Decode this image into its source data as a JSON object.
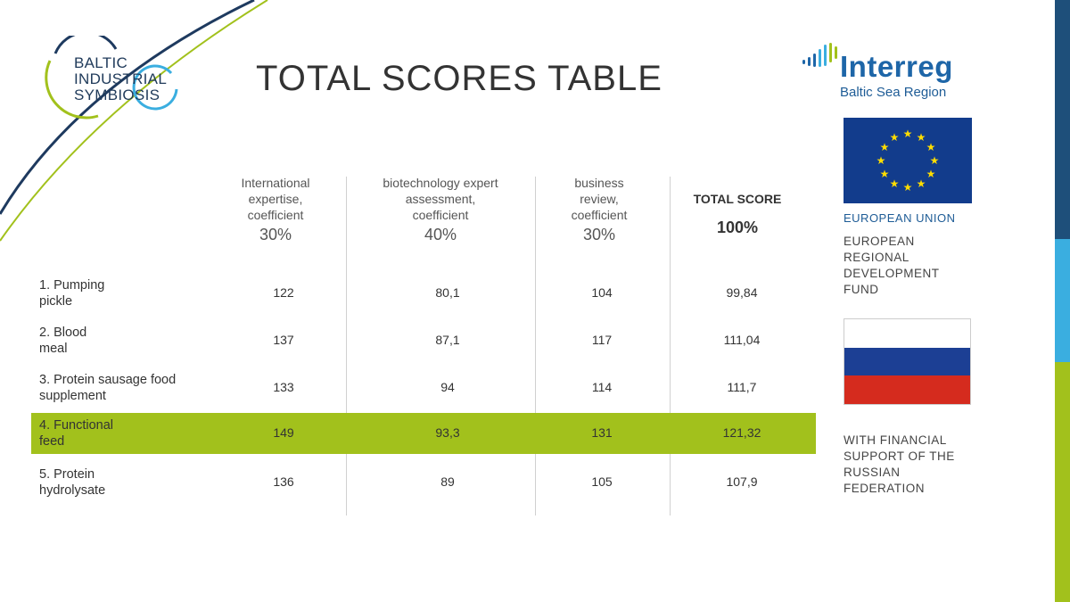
{
  "header": {
    "brand_lines": [
      "BALTIC",
      "INDUSTRIAL",
      "SYMBIOSIS"
    ],
    "title": "TOTAL SCORES TABLE"
  },
  "logos": {
    "interreg_name": "Interreg",
    "interreg_sub": "Baltic Sea Region",
    "eu_label": "EUROPEAN UNION",
    "fund_lines": [
      "EUROPEAN",
      "REGIONAL",
      "DEVELOPMENT",
      "FUND"
    ],
    "support_lines": [
      "WITH FINANCIAL",
      "SUPPORT OF THE",
      "RUSSIAN",
      "FEDERATION"
    ]
  },
  "colors": {
    "highlight": "#a2c11c",
    "navy": "#1e3a5f",
    "blue": "#3aaee0",
    "green": "#a2c11c",
    "ru_white": "#ffffff",
    "ru_blue": "#1c3f94",
    "ru_red": "#d52b1e",
    "eu_blue": "#123c8c",
    "eu_star": "#ffdd00"
  },
  "table": {
    "columns": [
      {
        "label": [
          "International",
          "expertise,",
          "coefficient"
        ],
        "pct": "30%"
      },
      {
        "label": [
          "biotechnology expert",
          "assessment,",
          "coefficient"
        ],
        "pct": "40%"
      },
      {
        "label": [
          "business",
          "review,",
          "coefficient"
        ],
        "pct": "30%"
      },
      {
        "label": [
          "TOTAL SCORE"
        ],
        "pct": "100%"
      }
    ],
    "rows": [
      {
        "name": [
          "1. Pumping",
          "pickle"
        ],
        "values": [
          "122",
          "80,1",
          "104",
          "99,84"
        ]
      },
      {
        "name": [
          "2. Blood",
          "meal"
        ],
        "values": [
          "137",
          "87,1",
          "117",
          "111,04"
        ]
      },
      {
        "name": [
          "3. Protein sausage food",
          "supplement"
        ],
        "values": [
          "133",
          "94",
          "114",
          "111,7"
        ]
      },
      {
        "name": [
          "4. Functional",
          "feed"
        ],
        "values": [
          "149",
          "93,3",
          "131",
          "121,32"
        ],
        "highlight": true
      },
      {
        "name": [
          "5. Protein",
          "hydrolysate"
        ],
        "values": [
          "136",
          "89",
          "105",
          "107,9"
        ]
      }
    ]
  }
}
